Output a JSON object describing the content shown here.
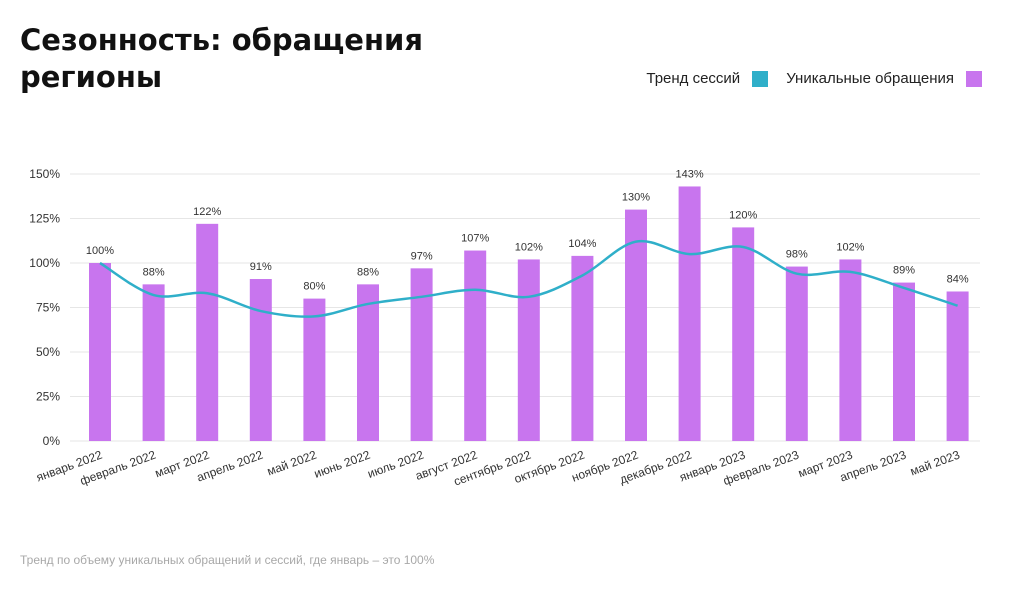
{
  "title_lines": [
    "Сезонность: обращения",
    "регионы"
  ],
  "legend": [
    {
      "label": "Тренд сессий",
      "color": "#2fafc9"
    },
    {
      "label": "Уникальные обращения",
      "color": "#c875ee"
    }
  ],
  "footnote": "Тренд по объему уникальных обращений и сессий, где январь – это 100%",
  "chart_data": {
    "type": "bar",
    "categories": [
      "январь 2022",
      "февраль 2022",
      "март 2022",
      "апрель 2022",
      "май 2022",
      "июнь 2022",
      "июль 2022",
      "август 2022",
      "сентябрь 2022",
      "октябрь 2022",
      "ноябрь 2022",
      "декабрь 2022",
      "январь 2023",
      "февраль 2023",
      "март 2023",
      "апрель 2023",
      "май 2023"
    ],
    "series": [
      {
        "name": "Уникальные обращения",
        "type": "bar",
        "color": "#c875ee",
        "values": [
          100,
          88,
          122,
          91,
          80,
          88,
          97,
          107,
          102,
          104,
          130,
          143,
          120,
          98,
          102,
          89,
          84
        ],
        "labels": [
          "100%",
          "88%",
          "122%",
          "91%",
          "80%",
          "88%",
          "97%",
          "107%",
          "102%",
          "104%",
          "130%",
          "143%",
          "120%",
          "98%",
          "102%",
          "89%",
          "84%"
        ]
      },
      {
        "name": "Тренд сессий",
        "type": "line",
        "color": "#2fafc9",
        "values": [
          100,
          82,
          83,
          73,
          70,
          77,
          81,
          85,
          81,
          93,
          112,
          105,
          109,
          94,
          95,
          86,
          76
        ]
      }
    ],
    "yticks": [
      "0%",
      "25%",
      "50%",
      "75%",
      "100%",
      "125%",
      "150%"
    ],
    "ylim": [
      0,
      150
    ],
    "grid": true,
    "legend_position": "top-right"
  }
}
